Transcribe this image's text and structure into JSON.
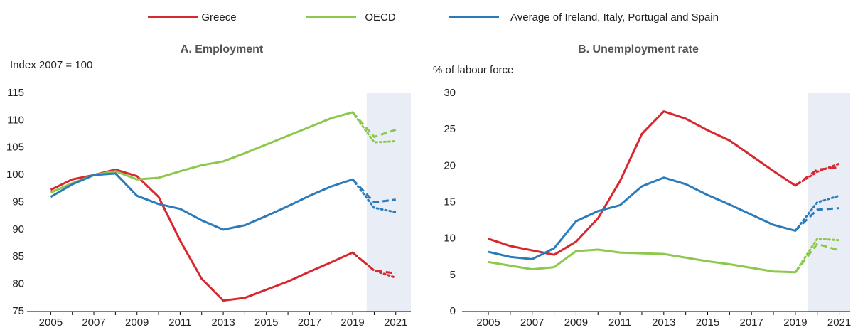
{
  "chart_data": [
    {
      "type": "line",
      "title": "A. Employment",
      "y_label": "Index 2007 = 100",
      "x": [
        2005,
        2006,
        2007,
        2008,
        2009,
        2010,
        2011,
        2012,
        2013,
        2014,
        2015,
        2016,
        2017,
        2018,
        2019,
        2020,
        2021
      ],
      "xlim": [
        2003.9,
        2021.7
      ],
      "xticks": [
        2005,
        2007,
        2009,
        2011,
        2013,
        2015,
        2017,
        2019,
        2021
      ],
      "ylim": [
        75,
        115
      ],
      "yticks": [
        75,
        80,
        85,
        90,
        95,
        100,
        105,
        110,
        115
      ],
      "shade_from": 2019.65,
      "shade_color": "#e9edf6",
      "series": [
        {
          "name": "Greece",
          "color": "#d6282e",
          "values": [
            97.3,
            99.2,
            100,
            101,
            99.8,
            96,
            88,
            81,
            77,
            77.5,
            79,
            80.5,
            82.3,
            84,
            85.8,
            null,
            null
          ],
          "dashed": [
            null,
            null,
            null,
            null,
            null,
            null,
            null,
            null,
            null,
            null,
            null,
            null,
            null,
            null,
            85.8,
            82.5,
            82
          ],
          "dotted": [
            null,
            null,
            null,
            null,
            null,
            null,
            null,
            null,
            null,
            null,
            null,
            null,
            null,
            null,
            85.8,
            82.5,
            81.2
          ]
        },
        {
          "name": "OECD",
          "color": "#8cc84b",
          "values": [
            96.8,
            98.5,
            100,
            100.7,
            99.2,
            99.5,
            100.7,
            101.8,
            102.5,
            104,
            105.6,
            107.2,
            108.8,
            110.4,
            111.5,
            null,
            null
          ],
          "dashed": [
            null,
            null,
            null,
            null,
            null,
            null,
            null,
            null,
            null,
            null,
            null,
            null,
            null,
            null,
            111.5,
            107,
            108.3
          ],
          "dotted": [
            null,
            null,
            null,
            null,
            null,
            null,
            null,
            null,
            null,
            null,
            null,
            null,
            null,
            null,
            111.5,
            106,
            106.2
          ]
        },
        {
          "name": "Average of Ireland, Italy, Portugal and Spain",
          "color": "#2b7bba",
          "values": [
            96,
            98.3,
            100,
            100.3,
            96.2,
            94.7,
            93.8,
            91.7,
            90,
            90.8,
            92.5,
            94.3,
            96.2,
            97.9,
            99.2,
            null,
            null
          ],
          "dashed": [
            null,
            null,
            null,
            null,
            null,
            null,
            null,
            null,
            null,
            null,
            null,
            null,
            null,
            null,
            99.2,
            95,
            95.5
          ],
          "dotted": [
            null,
            null,
            null,
            null,
            null,
            null,
            null,
            null,
            null,
            null,
            null,
            null,
            null,
            null,
            99.2,
            94,
            93.2
          ]
        }
      ]
    },
    {
      "type": "line",
      "title": "B. Unemployment rate",
      "y_label": "% of labour force",
      "x": [
        2005,
        2006,
        2007,
        2008,
        2009,
        2010,
        2011,
        2012,
        2013,
        2014,
        2015,
        2016,
        2017,
        2018,
        2019,
        2020,
        2021
      ],
      "xlim": [
        2003.8,
        2021.5
      ],
      "xticks": [
        2005,
        2007,
        2009,
        2011,
        2013,
        2015,
        2017,
        2019,
        2021
      ],
      "ylim": [
        0,
        30
      ],
      "yticks": [
        0,
        5,
        10,
        15,
        20,
        25,
        30
      ],
      "shade_from": 2019.58,
      "shade_color": "#e9edf6",
      "series": [
        {
          "color": "#d6282e",
          "values": [
            10,
            9,
            8.4,
            7.8,
            9.6,
            12.8,
            17.9,
            24.4,
            27.5,
            26.5,
            24.9,
            23.5,
            21.4,
            19.3,
            17.3,
            null,
            null
          ],
          "dashed": [
            null,
            null,
            null,
            null,
            null,
            null,
            null,
            null,
            null,
            null,
            null,
            null,
            null,
            null,
            17.3,
            19.5,
            19.8
          ],
          "dotted": [
            null,
            null,
            null,
            null,
            null,
            null,
            null,
            null,
            null,
            null,
            null,
            null,
            null,
            null,
            17.3,
            19.2,
            20.3
          ]
        },
        {
          "color": "#8cc84b",
          "values": [
            6.8,
            6.3,
            5.8,
            6.1,
            8.3,
            8.5,
            8.1,
            8.0,
            7.9,
            7.4,
            6.9,
            6.5,
            6.0,
            5.5,
            5.4,
            null,
            null
          ],
          "dashed": [
            null,
            null,
            null,
            null,
            null,
            null,
            null,
            null,
            null,
            null,
            null,
            null,
            null,
            null,
            5.4,
            9.3,
            8.4
          ],
          "dotted": [
            null,
            null,
            null,
            null,
            null,
            null,
            null,
            null,
            null,
            null,
            null,
            null,
            null,
            null,
            5.4,
            10,
            9.8
          ]
        },
        {
          "color": "#2b7bba",
          "values": [
            8.2,
            7.5,
            7.2,
            8.7,
            12.4,
            13.8,
            14.6,
            17.2,
            18.4,
            17.5,
            16.0,
            14.7,
            13.3,
            11.9,
            11.1,
            null,
            null
          ],
          "dashed": [
            null,
            null,
            null,
            null,
            null,
            null,
            null,
            null,
            null,
            null,
            null,
            null,
            null,
            null,
            11.1,
            14,
            14.2
          ],
          "dotted": [
            null,
            null,
            null,
            null,
            null,
            null,
            null,
            null,
            null,
            null,
            null,
            null,
            null,
            null,
            11.1,
            15,
            15.9
          ]
        }
      ]
    }
  ]
}
